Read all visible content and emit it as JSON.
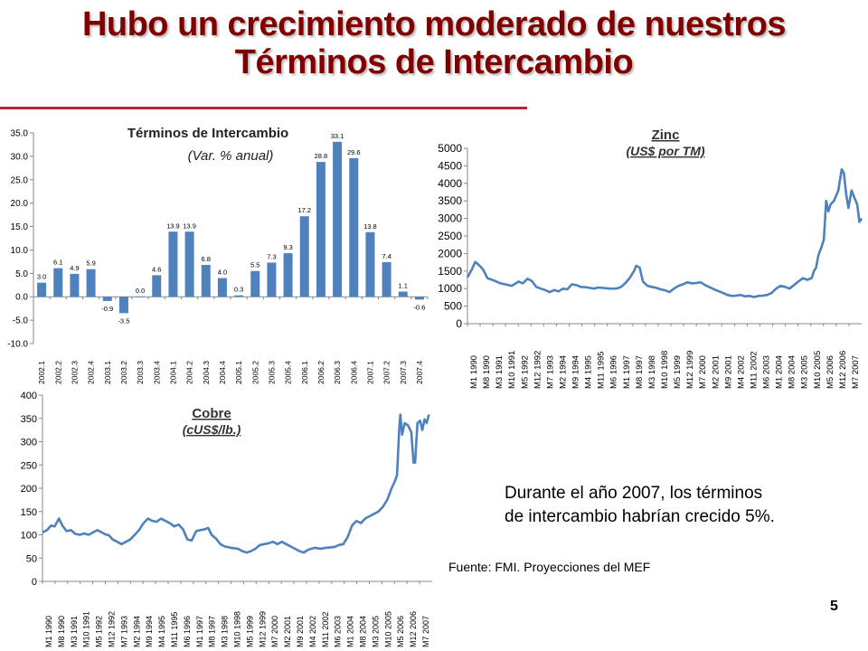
{
  "slide": {
    "title_line1": "Hubo un crecimiento moderado de nuestros",
    "title_line2": "Términos de Intercambio",
    "note_line1": "Durante el año 2007, los términos",
    "note_line2": "de intercambio habrían crecido 5%.",
    "source": "Fuente: FMI. Proyecciones del MEF",
    "page_number": "5",
    "colors": {
      "title": "#800000",
      "rule": "#b8232f",
      "series": "#4f81bd"
    }
  },
  "chart_data": [
    {
      "id": "tdi",
      "type": "bar",
      "title": "Términos de Intercambio",
      "subtitle": "(Var. % anual)",
      "categories": [
        "2002.1",
        "2002.2",
        "2002.3",
        "2002.4",
        "2003.1",
        "2003.2",
        "2003.3",
        "2003.4",
        "2004.1",
        "2004.2",
        "2004.3",
        "2004.4",
        "2005.1",
        "2005.2",
        "2005.3",
        "2005.4",
        "2006.1",
        "2006.2",
        "2006.3",
        "2006.4",
        "2007.1",
        "2007.2",
        "2007.3",
        "2007.4"
      ],
      "values": [
        3.0,
        6.1,
        4.9,
        5.9,
        -0.9,
        -3.5,
        0.0,
        4.6,
        13.9,
        13.9,
        6.8,
        4.0,
        0.3,
        5.5,
        7.3,
        9.3,
        17.2,
        28.8,
        33.1,
        29.6,
        13.8,
        7.4,
        1.1,
        -0.6
      ],
      "value_labels": [
        "3.0",
        "6.1",
        "4.9",
        "5.9",
        "-0.9",
        "-3.5",
        "0.0",
        "4.6",
        "13.9",
        "13.9",
        "6.8",
        "4.0",
        "0.3",
        "5.5",
        "7.3",
        "9.3",
        "17.2",
        "28.8",
        "33.1",
        "29.6",
        "13.8",
        "7.4",
        "1.1",
        "-0.6"
      ],
      "ylim": [
        -10,
        35
      ],
      "yticks": [
        "-10.0",
        "-5.0",
        "0.0",
        "5.0",
        "10.0",
        "15.0",
        "20.0",
        "25.0",
        "30.0",
        "35.0"
      ],
      "ytick_values": [
        -10,
        -5,
        0,
        5,
        10,
        15,
        20,
        25,
        30,
        35
      ],
      "grid": false
    },
    {
      "id": "zinc",
      "type": "line",
      "title": "Zinc",
      "subtitle": "(US$ por TM)",
      "ylim": [
        0,
        5000
      ],
      "yticks": [
        "0",
        "500",
        "1000",
        "1500",
        "2000",
        "2500",
        "3000",
        "3500",
        "4000",
        "4500",
        "5000"
      ],
      "ytick_values": [
        0,
        500,
        1000,
        1500,
        2000,
        2500,
        3000,
        3500,
        4000,
        4500,
        5000
      ],
      "xticks": [
        "M1 1990",
        "M8 1990",
        "M3 1991",
        "M10 1991",
        "M5 1992",
        "M12 1992",
        "M7 1993",
        "M2 1994",
        "M9 1994",
        "M4 1995",
        "M11 1995",
        "M6 1996",
        "M1 1997",
        "M8 1997",
        "M3 1998",
        "M10 1998",
        "M5 1999",
        "M12 1999",
        "M7 2000",
        "M2 2001",
        "M9 2001",
        "M4 2002",
        "M11 2002",
        "M6 2003",
        "M1 2004",
        "M8 2004",
        "M3 2005",
        "M10 2005",
        "M5 2006",
        "M12 2006",
        "M7 2007"
      ],
      "x_start": 1990.0,
      "x_end": 2007.75,
      "points": [
        [
          1990.0,
          1320
        ],
        [
          1990.2,
          1550
        ],
        [
          1990.35,
          1760
        ],
        [
          1990.5,
          1680
        ],
        [
          1990.7,
          1550
        ],
        [
          1990.9,
          1300
        ],
        [
          1991.2,
          1230
        ],
        [
          1991.5,
          1150
        ],
        [
          1991.7,
          1120
        ],
        [
          1992.0,
          1080
        ],
        [
          1992.3,
          1200
        ],
        [
          1992.5,
          1150
        ],
        [
          1992.7,
          1280
        ],
        [
          1992.9,
          1220
        ],
        [
          1993.1,
          1050
        ],
        [
          1993.3,
          1000
        ],
        [
          1993.5,
          960
        ],
        [
          1993.7,
          900
        ],
        [
          1993.9,
          960
        ],
        [
          1994.1,
          920
        ],
        [
          1994.3,
          1000
        ],
        [
          1994.5,
          980
        ],
        [
          1994.7,
          1120
        ],
        [
          1994.9,
          1100
        ],
        [
          1995.1,
          1050
        ],
        [
          1995.3,
          1040
        ],
        [
          1995.5,
          1020
        ],
        [
          1995.7,
          1000
        ],
        [
          1995.9,
          1030
        ],
        [
          1996.1,
          1020
        ],
        [
          1996.4,
          1000
        ],
        [
          1996.7,
          1000
        ],
        [
          1996.9,
          1040
        ],
        [
          1997.1,
          1150
        ],
        [
          1997.3,
          1300
        ],
        [
          1997.5,
          1500
        ],
        [
          1997.6,
          1650
        ],
        [
          1997.75,
          1600
        ],
        [
          1997.9,
          1200
        ],
        [
          1998.1,
          1080
        ],
        [
          1998.3,
          1050
        ],
        [
          1998.5,
          1020
        ],
        [
          1998.7,
          980
        ],
        [
          1998.9,
          950
        ],
        [
          1999.1,
          900
        ],
        [
          1999.3,
          1000
        ],
        [
          1999.5,
          1080
        ],
        [
          1999.7,
          1120
        ],
        [
          1999.9,
          1180
        ],
        [
          2000.1,
          1150
        ],
        [
          2000.3,
          1160
        ],
        [
          2000.5,
          1180
        ],
        [
          2000.7,
          1100
        ],
        [
          2000.9,
          1040
        ],
        [
          2001.1,
          980
        ],
        [
          2001.3,
          930
        ],
        [
          2001.5,
          880
        ],
        [
          2001.7,
          820
        ],
        [
          2001.9,
          790
        ],
        [
          2002.1,
          800
        ],
        [
          2002.3,
          820
        ],
        [
          2002.5,
          780
        ],
        [
          2002.7,
          790
        ],
        [
          2002.9,
          760
        ],
        [
          2003.1,
          790
        ],
        [
          2003.3,
          800
        ],
        [
          2003.5,
          820
        ],
        [
          2003.7,
          880
        ],
        [
          2003.9,
          1000
        ],
        [
          2004.1,
          1080
        ],
        [
          2004.3,
          1050
        ],
        [
          2004.5,
          1000
        ],
        [
          2004.7,
          1100
        ],
        [
          2004.9,
          1200
        ],
        [
          2005.1,
          1300
        ],
        [
          2005.3,
          1250
        ],
        [
          2005.5,
          1300
        ],
        [
          2005.6,
          1500
        ],
        [
          2005.7,
          1600
        ],
        [
          2005.8,
          1950
        ],
        [
          2005.95,
          2200
        ],
        [
          2006.05,
          2400
        ],
        [
          2006.15,
          3500
        ],
        [
          2006.25,
          3200
        ],
        [
          2006.35,
          3400
        ],
        [
          2006.5,
          3500
        ],
        [
          2006.7,
          3800
        ],
        [
          2006.85,
          4400
        ],
        [
          2006.95,
          4300
        ],
        [
          2007.05,
          3700
        ],
        [
          2007.15,
          3300
        ],
        [
          2007.3,
          3800
        ],
        [
          2007.45,
          3550
        ],
        [
          2007.55,
          3400
        ],
        [
          2007.65,
          2900
        ],
        [
          2007.75,
          3000
        ]
      ]
    },
    {
      "id": "cobre",
      "type": "line",
      "title": "Cobre",
      "subtitle": "(cUS$/lb.)",
      "ylim": [
        0,
        400
      ],
      "yticks": [
        "0",
        "50",
        "100",
        "150",
        "200",
        "250",
        "300",
        "350",
        "400"
      ],
      "ytick_values": [
        0,
        50,
        100,
        150,
        200,
        250,
        300,
        350,
        400
      ],
      "xticks": [
        "M1 1990",
        "M8 1990",
        "M3 1991",
        "M10 1991",
        "M5 1992",
        "M12 1992",
        "M7 1993",
        "M2 1994",
        "M9 1994",
        "M4 1995",
        "M11 1995",
        "M6 1996",
        "M1 1997",
        "M8 1997",
        "M3 1998",
        "M10 1998",
        "M5 1999",
        "M12 1999",
        "M7 2000",
        "M2 2001",
        "M9 2001",
        "M4 2002",
        "M11 2002",
        "M6 2003",
        "M1 2004",
        "M8 2004",
        "M3 2005",
        "M10 2005",
        "M5 2006",
        "M12 2006",
        "M7 2007"
      ],
      "x_start": 1990.0,
      "x_end": 2007.75,
      "points": [
        [
          1990.0,
          105
        ],
        [
          1990.2,
          110
        ],
        [
          1990.4,
          120
        ],
        [
          1990.55,
          118
        ],
        [
          1990.75,
          135
        ],
        [
          1990.9,
          120
        ],
        [
          1991.1,
          108
        ],
        [
          1991.3,
          110
        ],
        [
          1991.5,
          102
        ],
        [
          1991.7,
          100
        ],
        [
          1991.9,
          103
        ],
        [
          1992.1,
          100
        ],
        [
          1992.3,
          105
        ],
        [
          1992.5,
          110
        ],
        [
          1992.7,
          105
        ],
        [
          1992.9,
          100
        ],
        [
          1993.0,
          100
        ],
        [
          1993.2,
          90
        ],
        [
          1993.4,
          85
        ],
        [
          1993.6,
          80
        ],
        [
          1993.8,
          85
        ],
        [
          1994.0,
          90
        ],
        [
          1994.2,
          100
        ],
        [
          1994.4,
          110
        ],
        [
          1994.6,
          125
        ],
        [
          1994.8,
          135
        ],
        [
          1995.0,
          130
        ],
        [
          1995.2,
          128
        ],
        [
          1995.4,
          135
        ],
        [
          1995.6,
          130
        ],
        [
          1995.8,
          125
        ],
        [
          1996.0,
          118
        ],
        [
          1996.2,
          122
        ],
        [
          1996.4,
          112
        ],
        [
          1996.6,
          90
        ],
        [
          1996.8,
          88
        ],
        [
          1997.0,
          108
        ],
        [
          1997.2,
          110
        ],
        [
          1997.4,
          112
        ],
        [
          1997.55,
          115
        ],
        [
          1997.7,
          100
        ],
        [
          1997.9,
          92
        ],
        [
          1998.1,
          80
        ],
        [
          1998.3,
          75
        ],
        [
          1998.6,
          72
        ],
        [
          1998.9,
          70
        ],
        [
          1999.1,
          65
        ],
        [
          1999.3,
          62
        ],
        [
          1999.5,
          65
        ],
        [
          1999.7,
          70
        ],
        [
          1999.9,
          78
        ],
        [
          2000.1,
          80
        ],
        [
          2000.3,
          82
        ],
        [
          2000.5,
          85
        ],
        [
          2000.7,
          80
        ],
        [
          2000.9,
          85
        ],
        [
          2001.1,
          80
        ],
        [
          2001.3,
          75
        ],
        [
          2001.5,
          70
        ],
        [
          2001.7,
          65
        ],
        [
          2001.9,
          62
        ],
        [
          2002.1,
          68
        ],
        [
          2002.4,
          72
        ],
        [
          2002.7,
          70
        ],
        [
          2002.9,
          72
        ],
        [
          2003.1,
          73
        ],
        [
          2003.3,
          74
        ],
        [
          2003.5,
          78
        ],
        [
          2003.7,
          80
        ],
        [
          2003.9,
          95
        ],
        [
          2004.1,
          120
        ],
        [
          2004.3,
          130
        ],
        [
          2004.5,
          125
        ],
        [
          2004.7,
          135
        ],
        [
          2004.9,
          140
        ],
        [
          2005.1,
          145
        ],
        [
          2005.3,
          150
        ],
        [
          2005.5,
          160
        ],
        [
          2005.7,
          175
        ],
        [
          2005.9,
          200
        ],
        [
          2006.05,
          215
        ],
        [
          2006.15,
          228
        ],
        [
          2006.25,
          330
        ],
        [
          2006.3,
          358
        ],
        [
          2006.38,
          315
        ],
        [
          2006.5,
          340
        ],
        [
          2006.65,
          335
        ],
        [
          2006.8,
          320
        ],
        [
          2006.9,
          255
        ],
        [
          2006.97,
          255
        ],
        [
          2007.08,
          340
        ],
        [
          2007.2,
          345
        ],
        [
          2007.3,
          325
        ],
        [
          2007.4,
          348
        ],
        [
          2007.5,
          340
        ],
        [
          2007.6,
          358
        ]
      ]
    }
  ]
}
